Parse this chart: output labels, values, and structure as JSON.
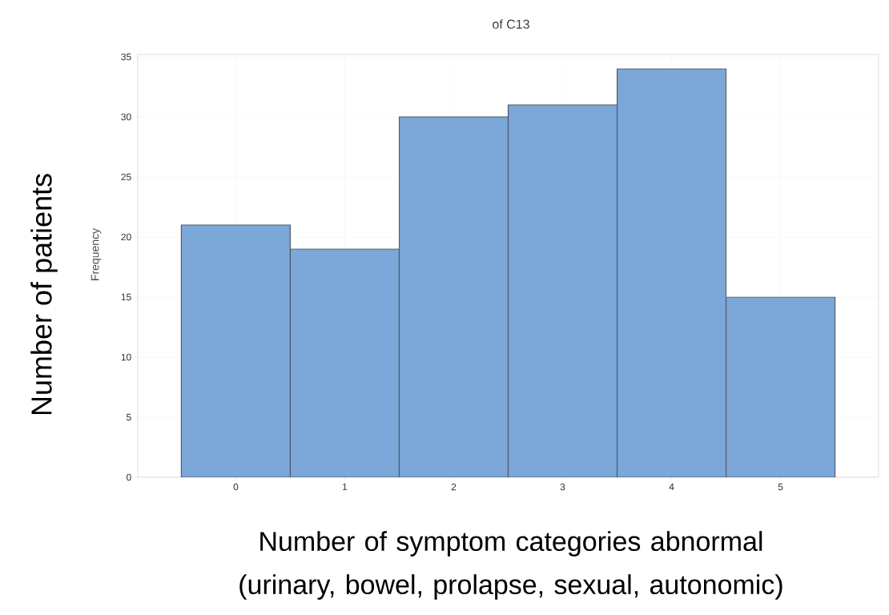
{
  "chart_data": {
    "type": "histogram",
    "title": "of C13",
    "xlabel": "Number of symptom categories abnormal (urinary, bowel, prolapse, sexual, autonomic)",
    "ylabel": "Number of patients",
    "annotations": [
      "Frequency"
    ],
    "bins": [
      -0.5,
      0.5,
      1.5,
      2.5,
      3.5,
      4.5,
      5.5
    ],
    "values": [
      21,
      19,
      30,
      31,
      34,
      15
    ],
    "color": "#7ba7d9",
    "xlim": [
      -0.9,
      5.9
    ],
    "ylim": [
      0,
      35.2
    ],
    "xticks": [
      0,
      1,
      2,
      3,
      4,
      5
    ],
    "yticks": [
      0,
      5,
      10,
      15,
      20,
      25,
      30,
      35
    ],
    "grid": true
  }
}
